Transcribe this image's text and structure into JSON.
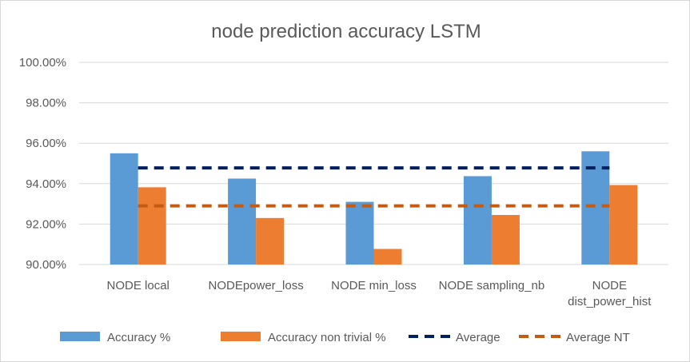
{
  "chart_data": {
    "type": "bar",
    "title": "node  prediction accuracy LSTM",
    "categories": [
      [
        "NODE local"
      ],
      [
        "NODEpower_loss"
      ],
      [
        "NODE min_loss"
      ],
      [
        "NODE sampling_nb"
      ],
      [
        "NODE",
        "dist_power_hist"
      ]
    ],
    "series": [
      {
        "name": "Accuracy %",
        "kind": "bar",
        "color": "#5b9bd5",
        "values": [
          95.5,
          94.25,
          93.1,
          94.37,
          95.6
        ]
      },
      {
        "name": "Accuracy non trivial %",
        "kind": "bar",
        "color": "#ed7d31",
        "values": [
          93.82,
          92.3,
          90.77,
          92.45,
          93.93
        ]
      },
      {
        "name": "Average",
        "kind": "dashed-line",
        "color": "#002060",
        "values": [
          94.78,
          94.78,
          94.78,
          94.78,
          94.78
        ]
      },
      {
        "name": "Average NT",
        "kind": "dashed-line",
        "color": "#c55a11",
        "values": [
          92.9,
          92.9,
          92.9,
          92.9,
          92.9
        ]
      }
    ],
    "ylim": [
      90,
      100
    ],
    "yticks": [
      "90.00%",
      "92.00%",
      "94.00%",
      "96.00%",
      "98.00%",
      "100.00%"
    ],
    "ytick_values": [
      90,
      92,
      94,
      96,
      98,
      100
    ],
    "grid": true,
    "legend_position": "bottom",
    "gridline_color": "#d9d9d9"
  }
}
